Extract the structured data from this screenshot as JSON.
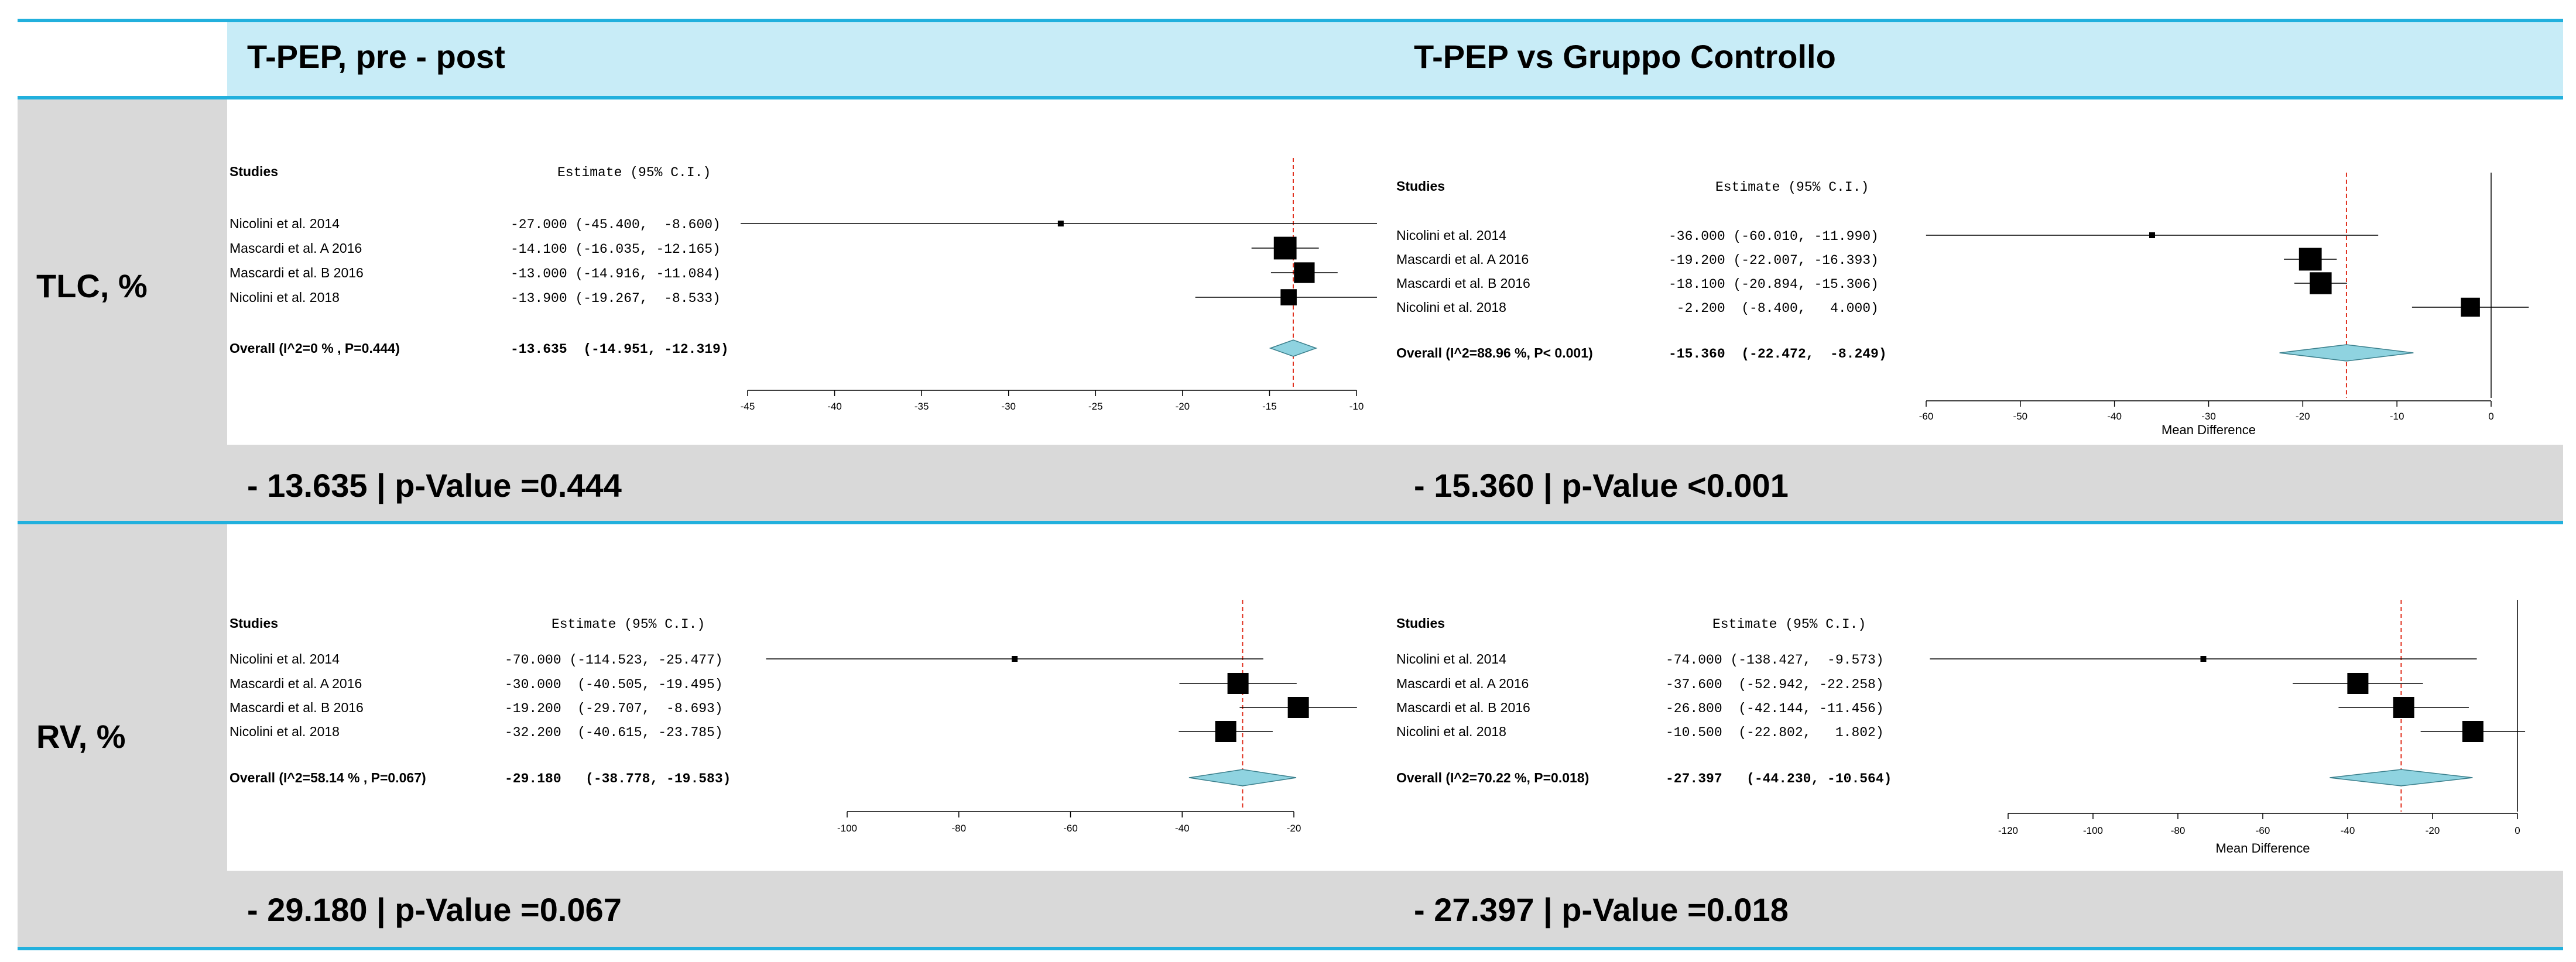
{
  "header": {
    "col1_title": "T-PEP, pre - post",
    "col2_title": "T-PEP vs Gruppo Controllo"
  },
  "rows": [
    {
      "label": "TLC, %",
      "results": [
        "- 13.635 | p-Value =0.444",
        "- 15.360 | p-Value <0.001"
      ]
    },
    {
      "label": "RV, %",
      "results": [
        "- 29.180 | p-Value =0.067",
        "- 27.397 | p-Value =0.018"
      ]
    }
  ],
  "colors": {
    "header_band": "#c8ecf7",
    "divider": "#22b0dd",
    "gray_band": "#d9d9d9",
    "diamond_fill": "#8fd3e0",
    "ref_line": "#e0301e"
  },
  "chart_data": [
    {
      "type": "forest",
      "title": "TLC, % - T-PEP, pre - post",
      "col_studies": "Studies",
      "col_estimate": "Estimate (95% C.I.)",
      "studies": [
        "Nicolini et al. 2014",
        "Mascardi et al. A 2016",
        "Mascardi et al. B 2016",
        "Nicolini et al.  2018"
      ],
      "estimates": [
        -27.0,
        -14.1,
        -13.0,
        -13.9
      ],
      "lower": [
        -45.4,
        -16.035,
        -14.916,
        -19.267
      ],
      "upper": [
        -8.6,
        -12.165,
        -11.084,
        -8.533
      ],
      "weights": [
        0.3,
        2.4,
        1.9,
        0.8
      ],
      "estimate_text": [
        "-27.000 (-45.400,  -8.600)",
        "-14.100 (-16.035, -12.165)",
        "-13.000 (-14.916, -11.084)",
        "-13.900 (-19.267,  -8.533)"
      ],
      "overall_label": "Overall (I^2=0 % , P=0.444)",
      "overall_text": "-13.635  (-14.951, -12.319)",
      "overall": {
        "estimate": -13.635,
        "lower": -14.951,
        "upper": -12.319
      },
      "xlim": [
        -45,
        -10
      ],
      "ticks": [
        -45,
        -40,
        -35,
        -30,
        -25,
        -20,
        -15,
        -10
      ],
      "tick_labels": [
        "-45",
        "-40",
        "-35",
        "-30",
        "-25",
        "-20",
        "-15",
        "-10"
      ],
      "xlabel": ""
    },
    {
      "type": "forest",
      "title": "TLC, % - T-PEP vs Gruppo Controllo",
      "col_studies": "Studies",
      "col_estimate": "Estimate (95% C.I.)",
      "studies": [
        "Nicolini et al. 2014",
        "Mascardi et al. A 2016",
        "Mascardi et al. B 2016",
        "Nicolini et al.  2018"
      ],
      "estimates": [
        -36.0,
        -19.2,
        -18.1,
        -2.2
      ],
      "lower": [
        -60.01,
        -22.007,
        -20.894,
        -8.4
      ],
      "upper": [
        -11.99,
        -16.393,
        -15.306,
        4.0
      ],
      "weights": [
        0.3,
        2.4,
        2.2,
        1.5
      ],
      "estimate_text": [
        "-36.000 (-60.010, -11.990)",
        "-19.200 (-22.007, -16.393)",
        "-18.100 (-20.894, -15.306)",
        " -2.200  (-8.400,   4.000)"
      ],
      "overall_label": "Overall (I^2=88.96 %, P< 0.001)",
      "overall_text": "-15.360  (-22.472,  -8.249)",
      "overall": {
        "estimate": -15.36,
        "lower": -22.472,
        "upper": -8.249
      },
      "xlim": [
        -60,
        0
      ],
      "ticks": [
        -60,
        -50,
        -40,
        -30,
        -20,
        -10,
        0
      ],
      "tick_labels": [
        "-60",
        "-50",
        "-40",
        "-30",
        "-20",
        "-10",
        "0"
      ],
      "xlabel": "Mean Difference"
    },
    {
      "type": "forest",
      "title": "RV, % - T-PEP, pre - post",
      "col_studies": "Studies",
      "col_estimate": "Estimate (95% C.I.)",
      "studies": [
        "Nicolini et al. 2014",
        "Mascardi et al. A 2016",
        "Mascardi et al. B 2016",
        "Nicolini et al.  2018"
      ],
      "estimates": [
        -70.0,
        -30.0,
        -19.2,
        -32.2
      ],
      "lower": [
        -114.523,
        -40.505,
        -29.707,
        -40.615
      ],
      "upper": [
        -25.477,
        -19.495,
        -8.693,
        -23.785
      ],
      "weights": [
        0.3,
        2.0,
        2.0,
        2.0
      ],
      "estimate_text": [
        "-70.000 (-114.523, -25.477)",
        "-30.000  (-40.505, -19.495)",
        "-19.200  (-29.707,  -8.693)",
        "-32.200  (-40.615, -23.785)"
      ],
      "overall_label": "Overall (I^2=58.14 % , P=0.067)",
      "overall_text": "-29.180   (-38.778, -19.583)",
      "overall": {
        "estimate": -29.18,
        "lower": -38.778,
        "upper": -19.583
      },
      "xlim": [
        -100,
        -20
      ],
      "ticks": [
        -100,
        -80,
        -60,
        -40,
        -20
      ],
      "tick_labels": [
        "-100",
        "-80",
        "-60",
        "-40",
        "-20"
      ],
      "xlabel": ""
    },
    {
      "type": "forest",
      "title": "RV, % - T-PEP vs Gruppo Controllo",
      "col_studies": "Studies",
      "col_estimate": "Estimate (95% C.I.)",
      "studies": [
        "Nicolini et al. 2014",
        "Mascardi et al. A 2016",
        "Mascardi et al. B 2016",
        "Nicolini et al.  2018"
      ],
      "estimates": [
        -74.0,
        -37.6,
        -26.8,
        -10.5
      ],
      "lower": [
        -138.427,
        -52.942,
        -42.144,
        -22.802
      ],
      "upper": [
        -9.573,
        -22.258,
        -11.456,
        1.802
      ],
      "weights": [
        0.3,
        2.0,
        2.0,
        2.0
      ],
      "estimate_text": [
        "-74.000 (-138.427,  -9.573)",
        "-37.600  (-52.942, -22.258)",
        "-26.800  (-42.144, -11.456)",
        "-10.500  (-22.802,   1.802)"
      ],
      "overall_label": "Overall (I^2=70.22 %, P=0.018)",
      "overall_text": "-27.397   (-44.230, -10.564)",
      "overall": {
        "estimate": -27.397,
        "lower": -44.23,
        "upper": -10.564
      },
      "xlim": [
        -120,
        0
      ],
      "ticks": [
        -120,
        -100,
        -80,
        -60,
        -40,
        -20,
        0
      ],
      "tick_labels": [
        "-120",
        "-100",
        "-80",
        "-60",
        "-40",
        "-20",
        "0"
      ],
      "xlabel": "Mean Difference"
    }
  ]
}
